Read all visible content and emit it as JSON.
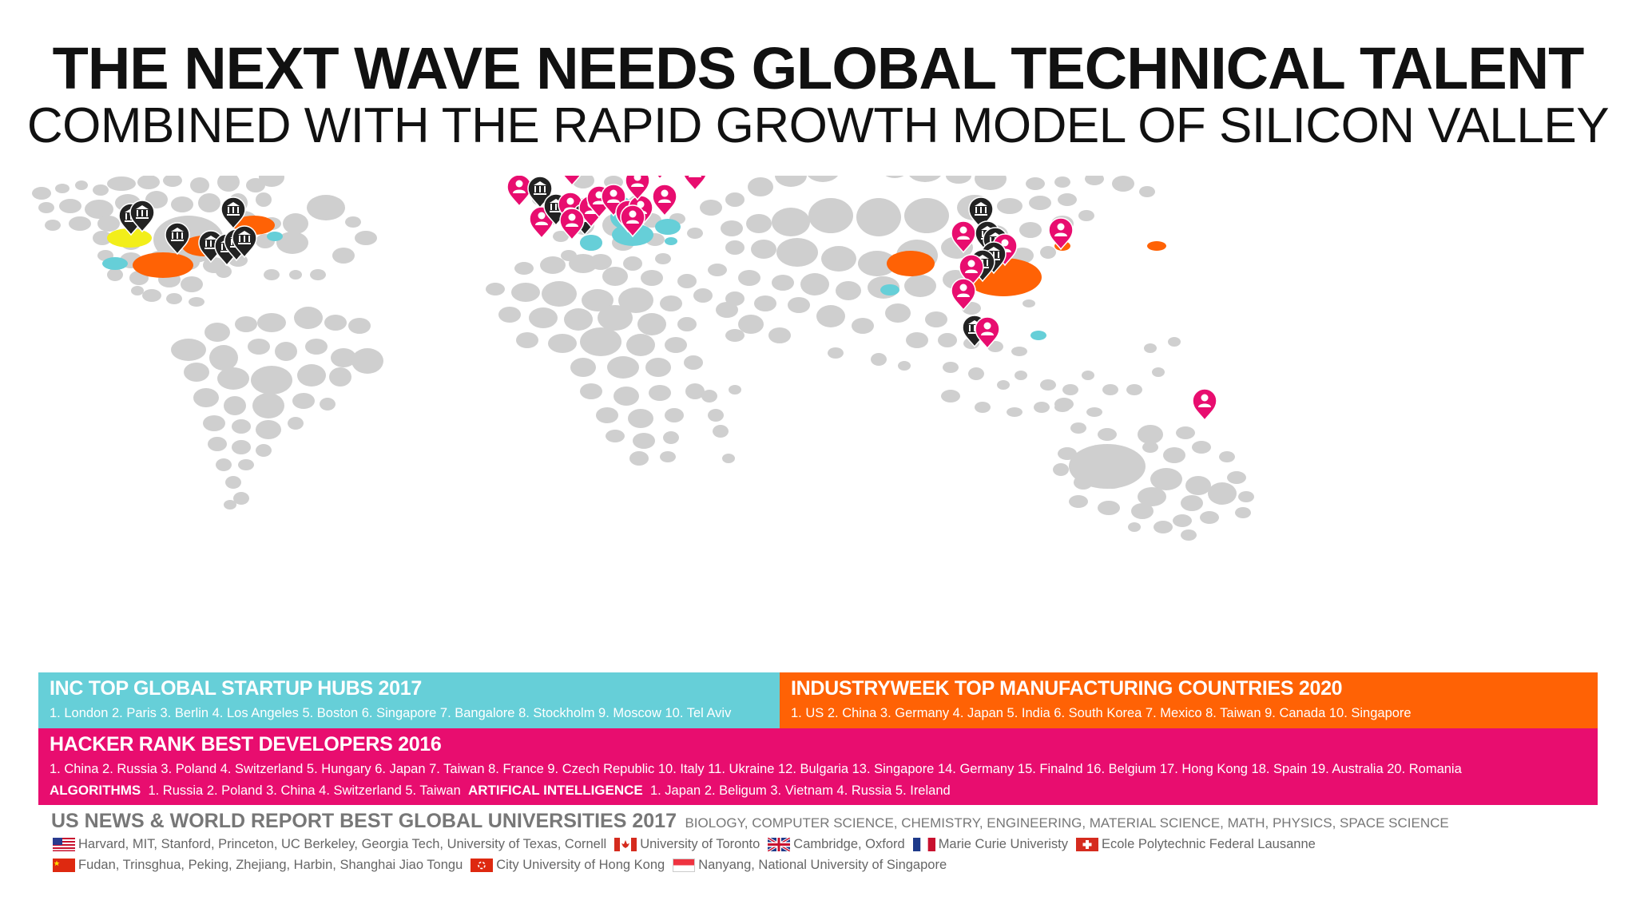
{
  "title": "THE NEXT WAVE NEEDS GLOBAL TECHNICAL TALENT",
  "subtitle": "COMBINED WITH THE RAPID GROWTH MODEL OF SILICON VALLEY",
  "colors": {
    "startup": "#66cfd8",
    "manufacturing": "#ff6205",
    "developers": "#e80d6f",
    "universities": "#222222",
    "land": "#cfcfcf",
    "highlight": "#f2ee1a"
  },
  "map_markers": {
    "university_icon": "university-building-icon",
    "developer_icon": "developer-person-pin-icon"
  },
  "startup_hubs": {
    "title": "INC TOP GLOBAL STARTUP HUBS 2017",
    "list": "1. London  2. Paris  3. Berlin  4. Los Angeles  5. Boston 6. Singapore  7. Bangalore  8. Stockholm  9. Moscow  10. Tel Aviv"
  },
  "manufacturing": {
    "title": "INDUSTRYWEEK TOP MANUFACTURING COUNTRIES 2020",
    "list": "1. US  2. China  3. Germany  4. Japan  5. India 6. South Korea  7. Mexico  8. Taiwan  9. Canada  10. Singapore"
  },
  "developers": {
    "title": "HACKER RANK BEST DEVELOPERS 2016",
    "list": "1. China  2. Russia  3. Poland  4. Switzerland  5. Hungary  6. Japan  7. Taiwan  8. France  9. Czech Republic  10. Italy  11. Ukraine  12. Bulgaria  13. Singapore  14. Germany  15. Finalnd  16. Belgium  17. Hong Kong  18. Spain  19. Australia  20. Romania",
    "algorithms_label": "ALGORITHMS",
    "algorithms_list": "1. Russia  2. Poland  3. China  4. Switzerland  5. Taiwan",
    "ai_label": "ARTIFICAL INTELLIGENCE",
    "ai_list": "1. Japan  2. Beligum  3. Vietnam  4. Russia  5. Ireland"
  },
  "universities": {
    "title": "US NEWS & WORLD REPORT BEST GLOBAL UNIVERSITIES 2017",
    "subjects": "BIOLOGY, COMPUTER SCIENCE, CHEMISTRY, ENGINEERING, MATERIAL SCIENCE, MATH, PHYSICS, SPACE SCIENCE",
    "row1": [
      {
        "flag": "us-flag",
        "text": "Harvard, MIT, Stanford, Princeton, UC Berkeley, Georgia Tech, University of Texas, Cornell"
      },
      {
        "flag": "canada-flag",
        "text": "University of Toronto"
      },
      {
        "flag": "uk-flag",
        "text": "Cambridge, Oxford"
      },
      {
        "flag": "france-flag",
        "text": "Marie Curie Univeristy"
      },
      {
        "flag": "switzerland-flag",
        "text": "Ecole Polytechnic Federal Lausanne"
      }
    ],
    "row2": [
      {
        "flag": "china-flag",
        "text": "Fudan, Trinsghua, Peking, Zhejiang, Harbin, Shanghai Jiao Tongu"
      },
      {
        "flag": "hong-kong-flag",
        "text": "City University of Hong Kong"
      },
      {
        "flag": "singapore-flag",
        "text": "Nanyang, National University of Singapore"
      }
    ]
  }
}
